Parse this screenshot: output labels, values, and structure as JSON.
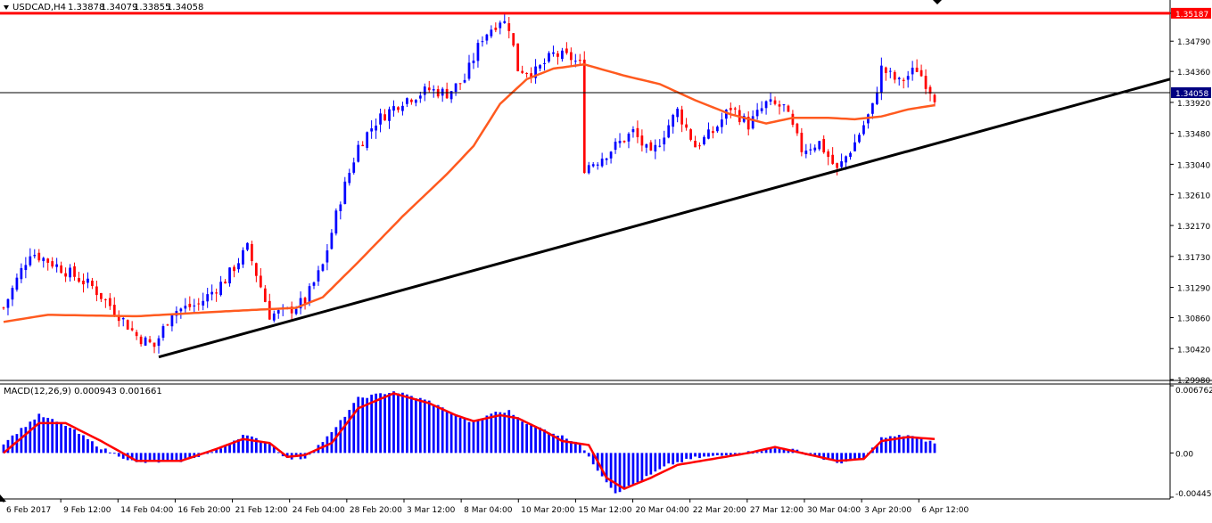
{
  "header": {
    "symbol": "USDCAD,H4",
    "open": "1.33878",
    "high": "1.34079",
    "low": "1.33855",
    "close": "1.34058"
  },
  "indicator": {
    "label": "MACD(12,26,9) 0.000943 0.001661"
  },
  "colors": {
    "bull": "#0000ff",
    "bear": "#ff0000",
    "moving_average": "#ff5a1f",
    "trendline": "#000000",
    "resistance": "#ff0000",
    "price_line": "#000000",
    "current_price_bg": "#000080",
    "macd_hist": "#0000ff",
    "macd_signal": "#ff0000"
  },
  "chart_data": {
    "type": "candlestick",
    "price_axis": {
      "range": [
        1.2998,
        1.3535
      ],
      "ticks": [
        "1.35187",
        "1.34790",
        "1.34360",
        "1.33920",
        "1.33480",
        "1.33040",
        "1.32610",
        "1.32170",
        "1.31730",
        "1.31290",
        "1.30860",
        "1.30420",
        "1.29980"
      ],
      "tick_values": [
        1.35187,
        1.3479,
        1.3436,
        1.3392,
        1.3348,
        1.3304,
        1.3261,
        1.3217,
        1.3173,
        1.3129,
        1.3086,
        1.3042,
        1.2998
      ],
      "label_flags": [
        {
          "text": "1.35187",
          "value": 1.35187,
          "kind": "resistance"
        },
        {
          "text": "1.34058",
          "value": 1.34058,
          "kind": "current"
        }
      ]
    },
    "time_axis": {
      "labels": [
        "6 Feb 2017",
        "9 Feb 12:00",
        "14 Feb 04:00",
        "16 Feb 20:00",
        "21 Feb 12:00",
        "24 Feb 04:00",
        "28 Feb 20:00",
        "3 Mar 12:00",
        "8 Mar 04:00",
        "10 Mar 20:00",
        "15 Mar 12:00",
        "20 Mar 04:00",
        "22 Mar 20:00",
        "27 Mar 12:00",
        "30 Mar 04:00",
        "3 Apr 20:00",
        "6 Apr 12:00"
      ]
    },
    "resistance_level": 1.35187,
    "current_price": 1.34058,
    "trendline": {
      "from": [
        "14 Feb 20:00",
        1.303
      ],
      "to": [
        "7 Apr 16:00",
        1.3425
      ]
    },
    "price_path": [
      [
        0,
        1.31
      ],
      [
        6,
        1.318
      ],
      [
        12,
        1.316
      ],
      [
        20,
        1.313
      ],
      [
        26,
        1.309
      ],
      [
        30,
        1.306
      ],
      [
        34,
        1.3045
      ],
      [
        38,
        1.3095
      ],
      [
        44,
        1.3105
      ],
      [
        50,
        1.314
      ],
      [
        55,
        1.3185
      ],
      [
        58,
        1.313
      ],
      [
        60,
        1.309
      ],
      [
        64,
        1.3095
      ],
      [
        68,
        1.311
      ],
      [
        72,
        1.316
      ],
      [
        76,
        1.3255
      ],
      [
        80,
        1.333
      ],
      [
        84,
        1.3365
      ],
      [
        90,
        1.3395
      ],
      [
        96,
        1.341
      ],
      [
        100,
        1.3405
      ],
      [
        104,
        1.3425
      ],
      [
        108,
        1.3485
      ],
      [
        112,
        1.351
      ],
      [
        114,
        1.35
      ],
      [
        116,
        1.344
      ],
      [
        120,
        1.3435
      ],
      [
        124,
        1.346
      ],
      [
        128,
        1.3455
      ],
      [
        130,
        1.3445
      ],
      [
        131,
        1.33
      ],
      [
        134,
        1.331
      ],
      [
        138,
        1.333
      ],
      [
        142,
        1.335
      ],
      [
        146,
        1.3315
      ],
      [
        150,
        1.336
      ],
      [
        152,
        1.338
      ],
      [
        156,
        1.333
      ],
      [
        160,
        1.335
      ],
      [
        164,
        1.3385
      ],
      [
        168,
        1.336
      ],
      [
        172,
        1.339
      ],
      [
        176,
        1.3385
      ],
      [
        180,
        1.3325
      ],
      [
        184,
        1.3335
      ],
      [
        188,
        1.3295
      ],
      [
        192,
        1.3335
      ],
      [
        196,
        1.3385
      ],
      [
        198,
        1.344
      ],
      [
        202,
        1.342
      ],
      [
        206,
        1.344
      ],
      [
        210,
        1.34
      ]
    ],
    "ma_path": [
      [
        0,
        1.308
      ],
      [
        10,
        1.309
      ],
      [
        30,
        1.3088
      ],
      [
        50,
        1.3095
      ],
      [
        66,
        1.31
      ],
      [
        72,
        1.3115
      ],
      [
        80,
        1.3165
      ],
      [
        90,
        1.323
      ],
      [
        100,
        1.329
      ],
      [
        106,
        1.333
      ],
      [
        112,
        1.339
      ],
      [
        118,
        1.3425
      ],
      [
        124,
        1.344
      ],
      [
        131,
        1.3446
      ],
      [
        140,
        1.343
      ],
      [
        148,
        1.3418
      ],
      [
        156,
        1.3395
      ],
      [
        164,
        1.3375
      ],
      [
        172,
        1.3362
      ],
      [
        178,
        1.337
      ],
      [
        186,
        1.337
      ],
      [
        192,
        1.3368
      ],
      [
        198,
        1.3372
      ],
      [
        204,
        1.3382
      ],
      [
        210,
        1.3388
      ]
    ],
    "macd": {
      "axis_range": [
        -0.00445,
        0.00676
      ],
      "ticks": [
        "0.006762",
        "0.00",
        "-0.004451"
      ],
      "tick_values": [
        0.006762,
        0.0,
        -0.004451
      ],
      "histogram_path": [
        [
          0,
          0.001
        ],
        [
          8,
          0.0038
        ],
        [
          14,
          0.0028
        ],
        [
          22,
          0.0005
        ],
        [
          30,
          -0.001
        ],
        [
          40,
          -0.0008
        ],
        [
          48,
          0.0002
        ],
        [
          54,
          0.0018
        ],
        [
          60,
          0.001
        ],
        [
          64,
          -0.0006
        ],
        [
          68,
          -0.0005
        ],
        [
          74,
          0.002
        ],
        [
          80,
          0.0055
        ],
        [
          88,
          0.0062
        ],
        [
          96,
          0.0052
        ],
        [
          102,
          0.0038
        ],
        [
          106,
          0.003
        ],
        [
          110,
          0.004
        ],
        [
          114,
          0.0042
        ],
        [
          118,
          0.003
        ],
        [
          124,
          0.002
        ],
        [
          130,
          0.001
        ],
        [
          132,
          -0.0005
        ],
        [
          138,
          -0.004
        ],
        [
          142,
          -0.0032
        ],
        [
          150,
          -0.0012
        ],
        [
          156,
          -0.0005
        ],
        [
          164,
          -0.0002
        ],
        [
          170,
          0.0002
        ],
        [
          176,
          0.0006
        ],
        [
          182,
          -0.0002
        ],
        [
          188,
          -0.001
        ],
        [
          194,
          -0.0006
        ],
        [
          198,
          0.0015
        ],
        [
          204,
          0.0018
        ],
        [
          210,
          0.001
        ]
      ],
      "signal_path": [
        [
          0,
          0.0
        ],
        [
          8,
          0.003
        ],
        [
          14,
          0.003
        ],
        [
          22,
          0.0012
        ],
        [
          30,
          -0.0008
        ],
        [
          40,
          -0.0008
        ],
        [
          48,
          0.0004
        ],
        [
          54,
          0.0014
        ],
        [
          60,
          0.001
        ],
        [
          64,
          -0.0004
        ],
        [
          68,
          -0.0002
        ],
        [
          74,
          0.001
        ],
        [
          80,
          0.0045
        ],
        [
          88,
          0.006
        ],
        [
          96,
          0.005
        ],
        [
          102,
          0.0038
        ],
        [
          106,
          0.0032
        ],
        [
          112,
          0.0038
        ],
        [
          116,
          0.0035
        ],
        [
          122,
          0.0022
        ],
        [
          126,
          0.0012
        ],
        [
          132,
          0.0008
        ],
        [
          136,
          -0.0025
        ],
        [
          140,
          -0.0036
        ],
        [
          146,
          -0.0025
        ],
        [
          152,
          -0.0012
        ],
        [
          160,
          -0.0006
        ],
        [
          168,
          0.0
        ],
        [
          174,
          0.0006
        ],
        [
          180,
          0.0
        ],
        [
          188,
          -0.0008
        ],
        [
          194,
          -0.0006
        ],
        [
          198,
          0.0012
        ],
        [
          204,
          0.0016
        ],
        [
          210,
          0.0014
        ]
      ]
    }
  }
}
